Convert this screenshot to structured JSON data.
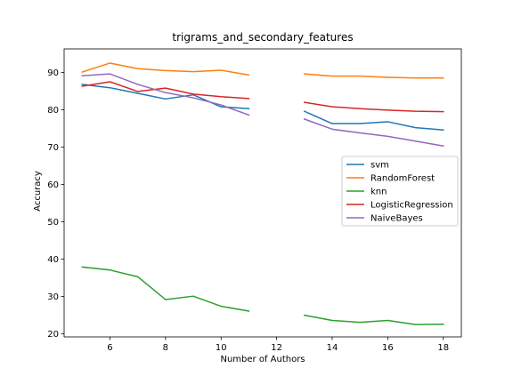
{
  "chart_data": {
    "type": "line",
    "title": "trigrams_and_secondary_features",
    "xlabel": "Number of Authors",
    "ylabel": "Accuracy",
    "xlim": [
      4.35,
      18.65
    ],
    "ylim": [
      19.2,
      96.3
    ],
    "xticks": [
      6,
      8,
      10,
      12,
      14,
      16,
      18
    ],
    "yticks": [
      20,
      30,
      40,
      50,
      60,
      70,
      80,
      90
    ],
    "legend_position": "center-right",
    "grid": false,
    "x": [
      5,
      6,
      7,
      8,
      9,
      10,
      11,
      12,
      13,
      14,
      15,
      16,
      17,
      18
    ],
    "series": [
      {
        "name": "svm",
        "color": "#1f77b4",
        "values": [
          86.8,
          85.9,
          84.4,
          82.9,
          84.0,
          80.8,
          80.3,
          null,
          79.6,
          76.3,
          76.3,
          76.8,
          75.2,
          74.6
        ]
      },
      {
        "name": "RandomForest",
        "color": "#ff7f0e",
        "values": [
          90.1,
          92.5,
          91.0,
          90.5,
          90.2,
          90.6,
          89.3,
          null,
          89.6,
          89.0,
          89.0,
          88.7,
          88.5,
          88.5
        ]
      },
      {
        "name": "knn",
        "color": "#2ca02c",
        "values": [
          37.9,
          37.1,
          35.3,
          29.2,
          30.1,
          27.4,
          26.1,
          null,
          25.0,
          23.6,
          23.1,
          23.6,
          22.5,
          22.6
        ]
      },
      {
        "name": "LogisticRegression",
        "color": "#d62728",
        "values": [
          86.3,
          87.5,
          84.9,
          85.8,
          84.2,
          83.5,
          83.0,
          null,
          82.0,
          80.8,
          80.3,
          79.9,
          79.6,
          79.5
        ]
      },
      {
        "name": "NaiveBayes",
        "color": "#9467bd",
        "values": [
          89.1,
          89.6,
          86.8,
          84.6,
          83.2,
          81.3,
          78.6,
          null,
          77.5,
          74.8,
          73.8,
          72.9,
          71.6,
          70.3
        ]
      }
    ]
  }
}
